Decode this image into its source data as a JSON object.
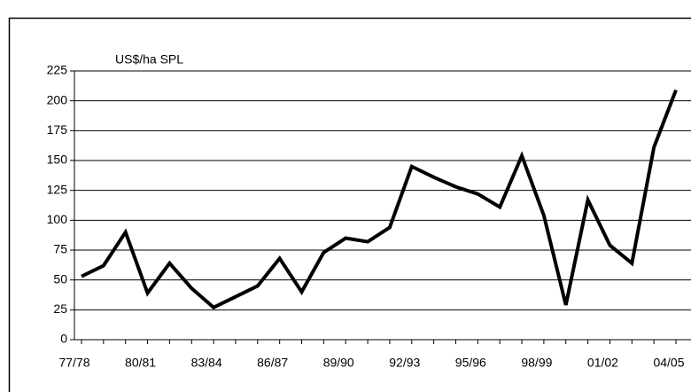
{
  "chart_data": {
    "type": "line",
    "y_label": "US$/ha SPL",
    "categories": [
      "77/78",
      null,
      null,
      "80/81",
      null,
      null,
      "83/84",
      null,
      null,
      "86/87",
      null,
      null,
      "89/90",
      null,
      null,
      "92/93",
      null,
      null,
      "95/96",
      null,
      null,
      "98/99",
      null,
      null,
      "01/02",
      null,
      null,
      "04/05"
    ],
    "series": [
      {
        "color": "#000000",
        "values": [
          53,
          62,
          90,
          39,
          64,
          43,
          27,
          36,
          45,
          68,
          40,
          73,
          85,
          82,
          94,
          145,
          136,
          128,
          122,
          111,
          154,
          104,
          29,
          117,
          79,
          64,
          161,
          209
        ]
      }
    ],
    "ylim": [
      0,
      225
    ],
    "yticks": [
      0,
      25,
      50,
      75,
      100,
      125,
      150,
      175,
      200,
      225
    ],
    "grid": true
  }
}
